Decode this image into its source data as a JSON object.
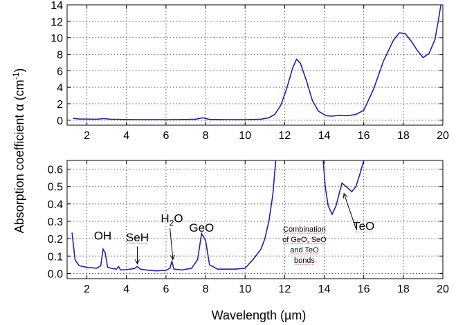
{
  "chart_data": [
    {
      "type": "line",
      "panel": "top",
      "xlabel": "Wavelength (µm)",
      "ylabel": "Absorption coefficient α (cm⁻¹)",
      "xlim": [
        1,
        20
      ],
      "ylim": [
        -0.6,
        14
      ],
      "xticks": [
        2,
        4,
        6,
        8,
        10,
        12,
        14,
        16,
        18,
        20
      ],
      "yticks": [
        0,
        2,
        4,
        6,
        8,
        10,
        12,
        14
      ],
      "grid": true,
      "series": [
        {
          "color": "#1f1fb4",
          "points": [
            [
              1.3,
              0.25
            ],
            [
              1.6,
              0.15
            ],
            [
              2.5,
              0.12
            ],
            [
              2.85,
              0.2
            ],
            [
              3.2,
              0.12
            ],
            [
              4.5,
              0.06
            ],
            [
              6.3,
              0.06
            ],
            [
              7.5,
              0.12
            ],
            [
              7.85,
              0.3
            ],
            [
              8.2,
              0.1
            ],
            [
              9,
              0.06
            ],
            [
              10,
              0.06
            ],
            [
              10.8,
              0.12
            ],
            [
              11.2,
              0.3
            ],
            [
              11.5,
              0.7
            ],
            [
              11.8,
              1.8
            ],
            [
              12.1,
              3.8
            ],
            [
              12.4,
              6.3
            ],
            [
              12.6,
              7.4
            ],
            [
              12.8,
              6.9
            ],
            [
              13.1,
              4.8
            ],
            [
              13.4,
              2.4
            ],
            [
              13.7,
              1.1
            ],
            [
              14.1,
              0.55
            ],
            [
              14.4,
              0.5
            ],
            [
              14.8,
              0.6
            ],
            [
              15.2,
              0.55
            ],
            [
              15.6,
              0.7
            ],
            [
              16.0,
              1.2
            ],
            [
              16.5,
              3.8
            ],
            [
              17.0,
              7.2
            ],
            [
              17.5,
              9.7
            ],
            [
              17.8,
              10.6
            ],
            [
              18.1,
              10.5
            ],
            [
              18.4,
              9.6
            ],
            [
              18.7,
              8.5
            ],
            [
              19.0,
              7.6
            ],
            [
              19.3,
              8.1
            ],
            [
              19.6,
              9.8
            ],
            [
              19.8,
              12.5
            ],
            [
              19.9,
              14.0
            ]
          ]
        }
      ]
    },
    {
      "type": "line",
      "panel": "bottom",
      "xlabel": "Wavelength (µm)",
      "ylabel": "Absorption coefficient α (cm⁻¹)",
      "xlim": [
        1,
        20
      ],
      "ylim": [
        -0.03,
        0.65
      ],
      "xticks": [
        2,
        4,
        6,
        8,
        10,
        12,
        14,
        16,
        18,
        20
      ],
      "yticks": [
        0.0,
        0.1,
        0.2,
        0.3,
        0.4,
        0.5,
        0.6
      ],
      "grid": true,
      "series": [
        {
          "color": "#1f1fb4",
          "points": [
            [
              1.25,
              0.235
            ],
            [
              1.4,
              0.08
            ],
            [
              1.6,
              0.045
            ],
            [
              2.0,
              0.035
            ],
            [
              2.5,
              0.03
            ],
            [
              2.7,
              0.045
            ],
            [
              2.82,
              0.14
            ],
            [
              2.92,
              0.12
            ],
            [
              3.05,
              0.035
            ],
            [
              3.3,
              0.028
            ],
            [
              3.5,
              0.025
            ],
            [
              3.6,
              0.04
            ],
            [
              3.7,
              0.02
            ],
            [
              4.0,
              0.022
            ],
            [
              4.4,
              0.028
            ],
            [
              4.55,
              0.04
            ],
            [
              4.7,
              0.025
            ],
            [
              5.0,
              0.02
            ],
            [
              5.5,
              0.015
            ],
            [
              6.0,
              0.018
            ],
            [
              6.2,
              0.03
            ],
            [
              6.3,
              0.07
            ],
            [
              6.4,
              0.025
            ],
            [
              6.8,
              0.02
            ],
            [
              7.3,
              0.03
            ],
            [
              7.6,
              0.08
            ],
            [
              7.8,
              0.23
            ],
            [
              8.0,
              0.19
            ],
            [
              8.2,
              0.05
            ],
            [
              8.6,
              0.025
            ],
            [
              9.5,
              0.025
            ],
            [
              10.0,
              0.03
            ],
            [
              10.4,
              0.08
            ],
            [
              10.8,
              0.14
            ],
            [
              11.0,
              0.2
            ],
            [
              11.2,
              0.3
            ],
            [
              11.4,
              0.45
            ],
            [
              11.55,
              0.65
            ]
          ]
        },
        {
          "color": "#1f1fb4",
          "points": [
            [
              13.95,
              0.65
            ],
            [
              14.05,
              0.5
            ],
            [
              14.2,
              0.39
            ],
            [
              14.4,
              0.34
            ],
            [
              14.6,
              0.39
            ],
            [
              14.9,
              0.52
            ],
            [
              15.2,
              0.49
            ],
            [
              15.4,
              0.47
            ],
            [
              15.6,
              0.5
            ],
            [
              15.8,
              0.57
            ],
            [
              16.0,
              0.65
            ]
          ]
        }
      ],
      "annotations": [
        {
          "text": "OH",
          "x": 2.8,
          "y": 0.195,
          "size": "large"
        },
        {
          "text": "SeH",
          "x": 4.55,
          "y": 0.185,
          "size": "large"
        },
        {
          "text": "H",
          "sub": "2",
          "tail": "O",
          "x": 6.3,
          "y": 0.295,
          "size": "large"
        },
        {
          "text": "GeO",
          "x": 7.8,
          "y": 0.24,
          "size": "large"
        },
        {
          "text": "TeO",
          "x": 16.0,
          "y": 0.25,
          "size": "large"
        },
        {
          "lines": [
            "Combination",
            "of GeO, SeO",
            "and TeO",
            "bonds"
          ],
          "x": 13.0,
          "y": 0.24,
          "size": "small"
        }
      ]
    }
  ],
  "texts": {
    "ylabel_main": "Absorption coefficient α (cm",
    "ylabel_sup": "-1",
    "ylabel_close": ")",
    "xlabel": "Wavelength (µm)"
  }
}
